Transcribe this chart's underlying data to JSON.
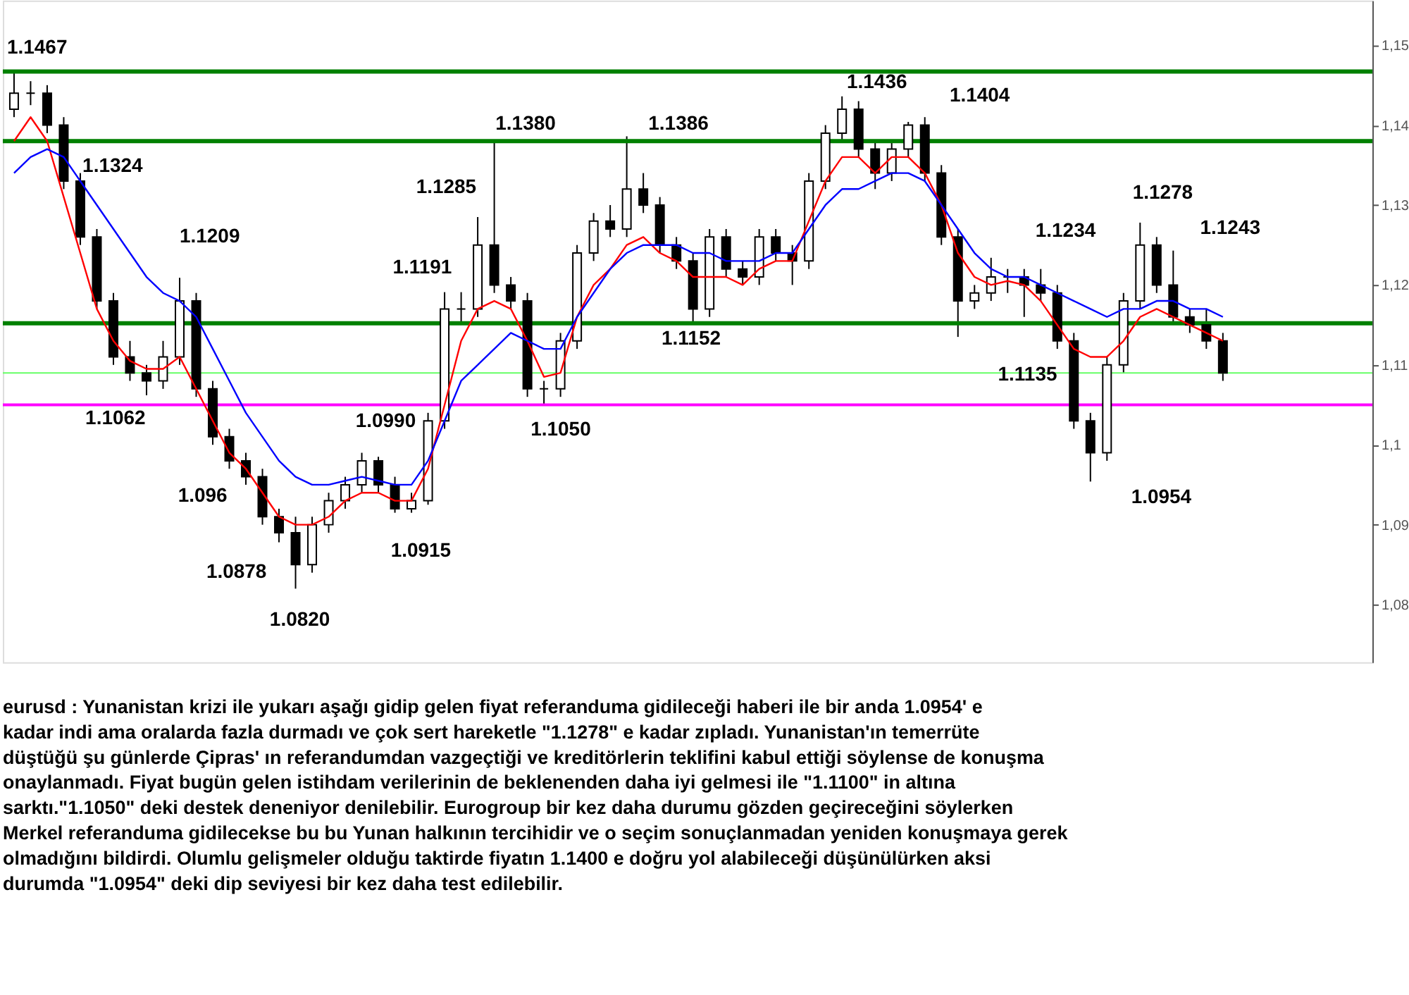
{
  "chart_data": {
    "type": "candlestick",
    "categories": [
      null,
      null,
      null,
      null,
      null,
      null,
      null,
      null,
      null,
      null,
      null,
      null,
      null,
      null,
      null,
      null,
      null,
      null,
      null,
      null,
      null,
      null,
      null,
      null,
      null,
      null,
      null,
      null,
      null,
      null,
      null,
      null,
      null,
      null,
      null,
      null,
      null,
      null,
      null,
      null,
      null,
      null,
      null,
      null,
      null,
      null,
      null,
      null,
      null,
      null,
      null,
      null,
      null,
      null,
      null,
      null,
      null,
      null,
      null,
      null,
      null,
      null,
      null,
      null,
      null,
      null,
      null,
      null,
      null,
      null,
      null,
      null,
      null,
      null
    ],
    "ohlc": [
      [
        1.142,
        1.1467,
        1.141,
        1.144
      ],
      [
        1.144,
        1.1455,
        1.1425,
        1.144
      ],
      [
        1.144,
        1.145,
        1.139,
        1.14
      ],
      [
        1.14,
        1.141,
        1.132,
        1.133
      ],
      [
        1.133,
        1.134,
        1.125,
        1.126
      ],
      [
        1.126,
        1.127,
        1.117,
        1.118
      ],
      [
        1.118,
        1.119,
        1.11,
        1.111
      ],
      [
        1.111,
        1.113,
        1.108,
        1.109
      ],
      [
        1.109,
        1.11,
        1.1062,
        1.108
      ],
      [
        1.108,
        1.113,
        1.107,
        1.111
      ],
      [
        1.111,
        1.1209,
        1.11,
        1.118
      ],
      [
        1.118,
        1.119,
        1.106,
        1.107
      ],
      [
        1.107,
        1.108,
        1.1,
        1.101
      ],
      [
        1.101,
        1.102,
        1.097,
        1.098
      ],
      [
        1.098,
        1.099,
        1.095,
        1.096
      ],
      [
        1.096,
        1.097,
        1.09,
        1.091
      ],
      [
        1.091,
        1.092,
        1.0878,
        1.089
      ],
      [
        1.089,
        1.091,
        1.082,
        1.085
      ],
      [
        1.085,
        1.091,
        1.084,
        1.09
      ],
      [
        1.09,
        1.094,
        1.089,
        1.093
      ],
      [
        1.093,
        1.096,
        1.092,
        1.095
      ],
      [
        1.095,
        1.099,
        1.094,
        1.098
      ],
      [
        1.098,
        1.0985,
        1.094,
        1.095
      ],
      [
        1.095,
        1.096,
        1.0915,
        1.092
      ],
      [
        1.092,
        1.094,
        1.0915,
        1.093
      ],
      [
        1.093,
        1.104,
        1.0925,
        1.103
      ],
      [
        1.103,
        1.1191,
        1.102,
        1.117
      ],
      [
        1.117,
        1.1191,
        1.115,
        1.117
      ],
      [
        1.117,
        1.1285,
        1.116,
        1.125
      ],
      [
        1.125,
        1.138,
        1.119,
        1.12
      ],
      [
        1.12,
        1.121,
        1.117,
        1.118
      ],
      [
        1.118,
        1.119,
        1.106,
        1.107
      ],
      [
        1.107,
        1.108,
        1.105,
        1.107
      ],
      [
        1.107,
        1.114,
        1.106,
        1.113
      ],
      [
        1.113,
        1.125,
        1.112,
        1.124
      ],
      [
        1.124,
        1.129,
        1.123,
        1.128
      ],
      [
        1.128,
        1.13,
        1.126,
        1.127
      ],
      [
        1.127,
        1.1386,
        1.126,
        1.132
      ],
      [
        1.132,
        1.134,
        1.129,
        1.13
      ],
      [
        1.13,
        1.131,
        1.124,
        1.125
      ],
      [
        1.125,
        1.126,
        1.122,
        1.123
      ],
      [
        1.123,
        1.124,
        1.1152,
        1.117
      ],
      [
        1.117,
        1.127,
        1.116,
        1.126
      ],
      [
        1.126,
        1.127,
        1.121,
        1.122
      ],
      [
        1.122,
        1.123,
        1.12,
        1.121
      ],
      [
        1.121,
        1.127,
        1.12,
        1.126
      ],
      [
        1.126,
        1.127,
        1.123,
        1.124
      ],
      [
        1.124,
        1.125,
        1.12,
        1.123
      ],
      [
        1.123,
        1.134,
        1.122,
        1.133
      ],
      [
        1.133,
        1.14,
        1.132,
        1.139
      ],
      [
        1.139,
        1.1436,
        1.138,
        1.142
      ],
      [
        1.142,
        1.143,
        1.136,
        1.137
      ],
      [
        1.137,
        1.138,
        1.132,
        1.134
      ],
      [
        1.134,
        1.138,
        1.133,
        1.137
      ],
      [
        1.137,
        1.1404,
        1.136,
        1.14
      ],
      [
        1.14,
        1.141,
        1.133,
        1.134
      ],
      [
        1.134,
        1.135,
        1.125,
        1.126
      ],
      [
        1.126,
        1.127,
        1.1135,
        1.118
      ],
      [
        1.118,
        1.12,
        1.117,
        1.119
      ],
      [
        1.119,
        1.1234,
        1.118,
        1.121
      ],
      [
        1.121,
        1.122,
        1.119,
        1.121
      ],
      [
        1.121,
        1.122,
        1.116,
        1.12
      ],
      [
        1.12,
        1.122,
        1.118,
        1.119
      ],
      [
        1.119,
        1.12,
        1.112,
        1.113
      ],
      [
        1.113,
        1.114,
        1.102,
        1.103
      ],
      [
        1.103,
        1.104,
        1.0954,
        1.099
      ],
      [
        1.099,
        1.111,
        1.098,
        1.11
      ],
      [
        1.11,
        1.119,
        1.109,
        1.118
      ],
      [
        1.118,
        1.1278,
        1.117,
        1.125
      ],
      [
        1.125,
        1.126,
        1.119,
        1.12
      ],
      [
        1.12,
        1.1243,
        1.115,
        1.116
      ],
      [
        1.116,
        1.117,
        1.114,
        1.115
      ],
      [
        1.115,
        1.117,
        1.112,
        1.113
      ],
      [
        1.113,
        1.114,
        1.108,
        1.109
      ]
    ],
    "color": "#000000",
    "series": [
      {
        "type": "line",
        "color": "#ff0000",
        "values": [
          1.138,
          1.141,
          1.138,
          1.131,
          1.124,
          1.117,
          1.113,
          1.1105,
          1.1095,
          1.1095,
          1.111,
          1.107,
          1.103,
          1.099,
          1.097,
          1.094,
          1.091,
          1.09,
          1.09,
          1.091,
          1.093,
          1.094,
          1.094,
          1.093,
          1.093,
          1.097,
          1.105,
          1.113,
          1.117,
          1.118,
          1.117,
          1.113,
          1.1085,
          1.109,
          1.116,
          1.12,
          1.122,
          1.125,
          1.126,
          1.124,
          1.123,
          1.121,
          1.121,
          1.121,
          1.12,
          1.122,
          1.123,
          1.123,
          1.128,
          1.133,
          1.136,
          1.136,
          1.134,
          1.136,
          1.136,
          1.134,
          1.13,
          1.124,
          1.121,
          1.12,
          1.1205,
          1.12,
          1.118,
          1.115,
          1.112,
          1.111,
          1.111,
          1.113,
          1.116,
          1.117,
          1.116,
          1.115,
          1.114,
          1.113
        ]
      },
      {
        "type": "line",
        "color": "#0000ff",
        "values": [
          1.134,
          1.136,
          1.137,
          1.136,
          1.133,
          1.13,
          1.127,
          1.124,
          1.121,
          1.119,
          1.118,
          1.116,
          1.112,
          1.108,
          1.104,
          1.101,
          1.098,
          1.096,
          1.095,
          1.095,
          1.0955,
          1.096,
          1.0955,
          1.095,
          1.095,
          1.098,
          1.103,
          1.108,
          1.11,
          1.112,
          1.114,
          1.113,
          1.112,
          1.112,
          1.116,
          1.119,
          1.122,
          1.124,
          1.125,
          1.125,
          1.125,
          1.124,
          1.124,
          1.123,
          1.123,
          1.123,
          1.124,
          1.124,
          1.127,
          1.13,
          1.132,
          1.132,
          1.133,
          1.134,
          1.134,
          1.133,
          1.13,
          1.127,
          1.124,
          1.122,
          1.121,
          1.121,
          1.12,
          1.119,
          1.118,
          1.117,
          1.116,
          1.117,
          1.117,
          1.118,
          1.118,
          1.117,
          1.117,
          1.116
        ]
      }
    ],
    "ylim": [
      1.0728,
      1.1556
    ],
    "yticks": [
      {
        "value": 1.08,
        "label": "1,08"
      },
      {
        "value": 1.09,
        "label": "1,09"
      },
      {
        "value": 1.1,
        "label": "1,1"
      },
      {
        "value": 1.11,
        "label": "1,11"
      },
      {
        "value": 1.12,
        "label": "1,12"
      },
      {
        "value": 1.13,
        "label": "1,13"
      },
      {
        "value": 1.14,
        "label": "1,14"
      },
      {
        "value": 1.15,
        "label": "1,15"
      }
    ],
    "tick_labels": "y",
    "grid": false,
    "ref_lines": [
      {
        "axis": "y",
        "value": 1.1467,
        "label": "1.1467",
        "color": "#008000"
      },
      {
        "axis": "y",
        "value": 1.138,
        "label": "1.1380",
        "color": "#008000"
      },
      {
        "axis": "y",
        "value": 1.1152,
        "label": "1.1152",
        "color": "#008000"
      },
      {
        "axis": "y",
        "value": 1.105,
        "label": "1.1050",
        "color": "#ff00ff"
      },
      {
        "axis": "y",
        "value": 1.109,
        "color": "#66ff66"
      }
    ],
    "annotations": [
      "1.1324",
      "1.1209",
      "1.1062",
      "1.096",
      "1.0878",
      "1.0820",
      "1.0990",
      "1.0915",
      "1.1285",
      "1.1191",
      "1.1386",
      "1.1436",
      "1.1404",
      "1.1234",
      "1.1278",
      "1.1243",
      "1.1135",
      "1.0954",
      "eurusd : Yunanistan krizi ile yukarı aşağı gidip gelen fiyat referanduma gidileceği haberi ile bir anda 1.0954' e kadar indi ama oralarda fazla durmadı ve çok sert hareketle \"1.1278\" e kadar zıpladı. Yunanistan'ın temerrüte düştüğü şu günlerde Çipras' ın referandumdan vazgeçtiği ve kreditörlerin teklifini kabul ettiği söylense de konuşma onaylanmadı. Fiyat bugün gelen istihdam verilerinin de beklenenden daha iyi gelmesi ile \"1.1100\" in altına sarktı.\"1.1050\" deki destek deneniyor denilebilir. Eurogroup bir kez daha durumu gözden geçireceğini söylerken Merkel referanduma gidilecekse bu bu Yunan halkının tercihidir ve o seçim sonuçlanmadan yeniden konuşmaya gerek olmadığını bildirdi. Olumlu gelişmeler olduğu taktirde fiyatın 1.1400 e doğru yol alabileceği düşünülürken aksi durumda \"1.0954\" deki dip seviyesi bir kez daha test edilebilir."
    ]
  }
}
